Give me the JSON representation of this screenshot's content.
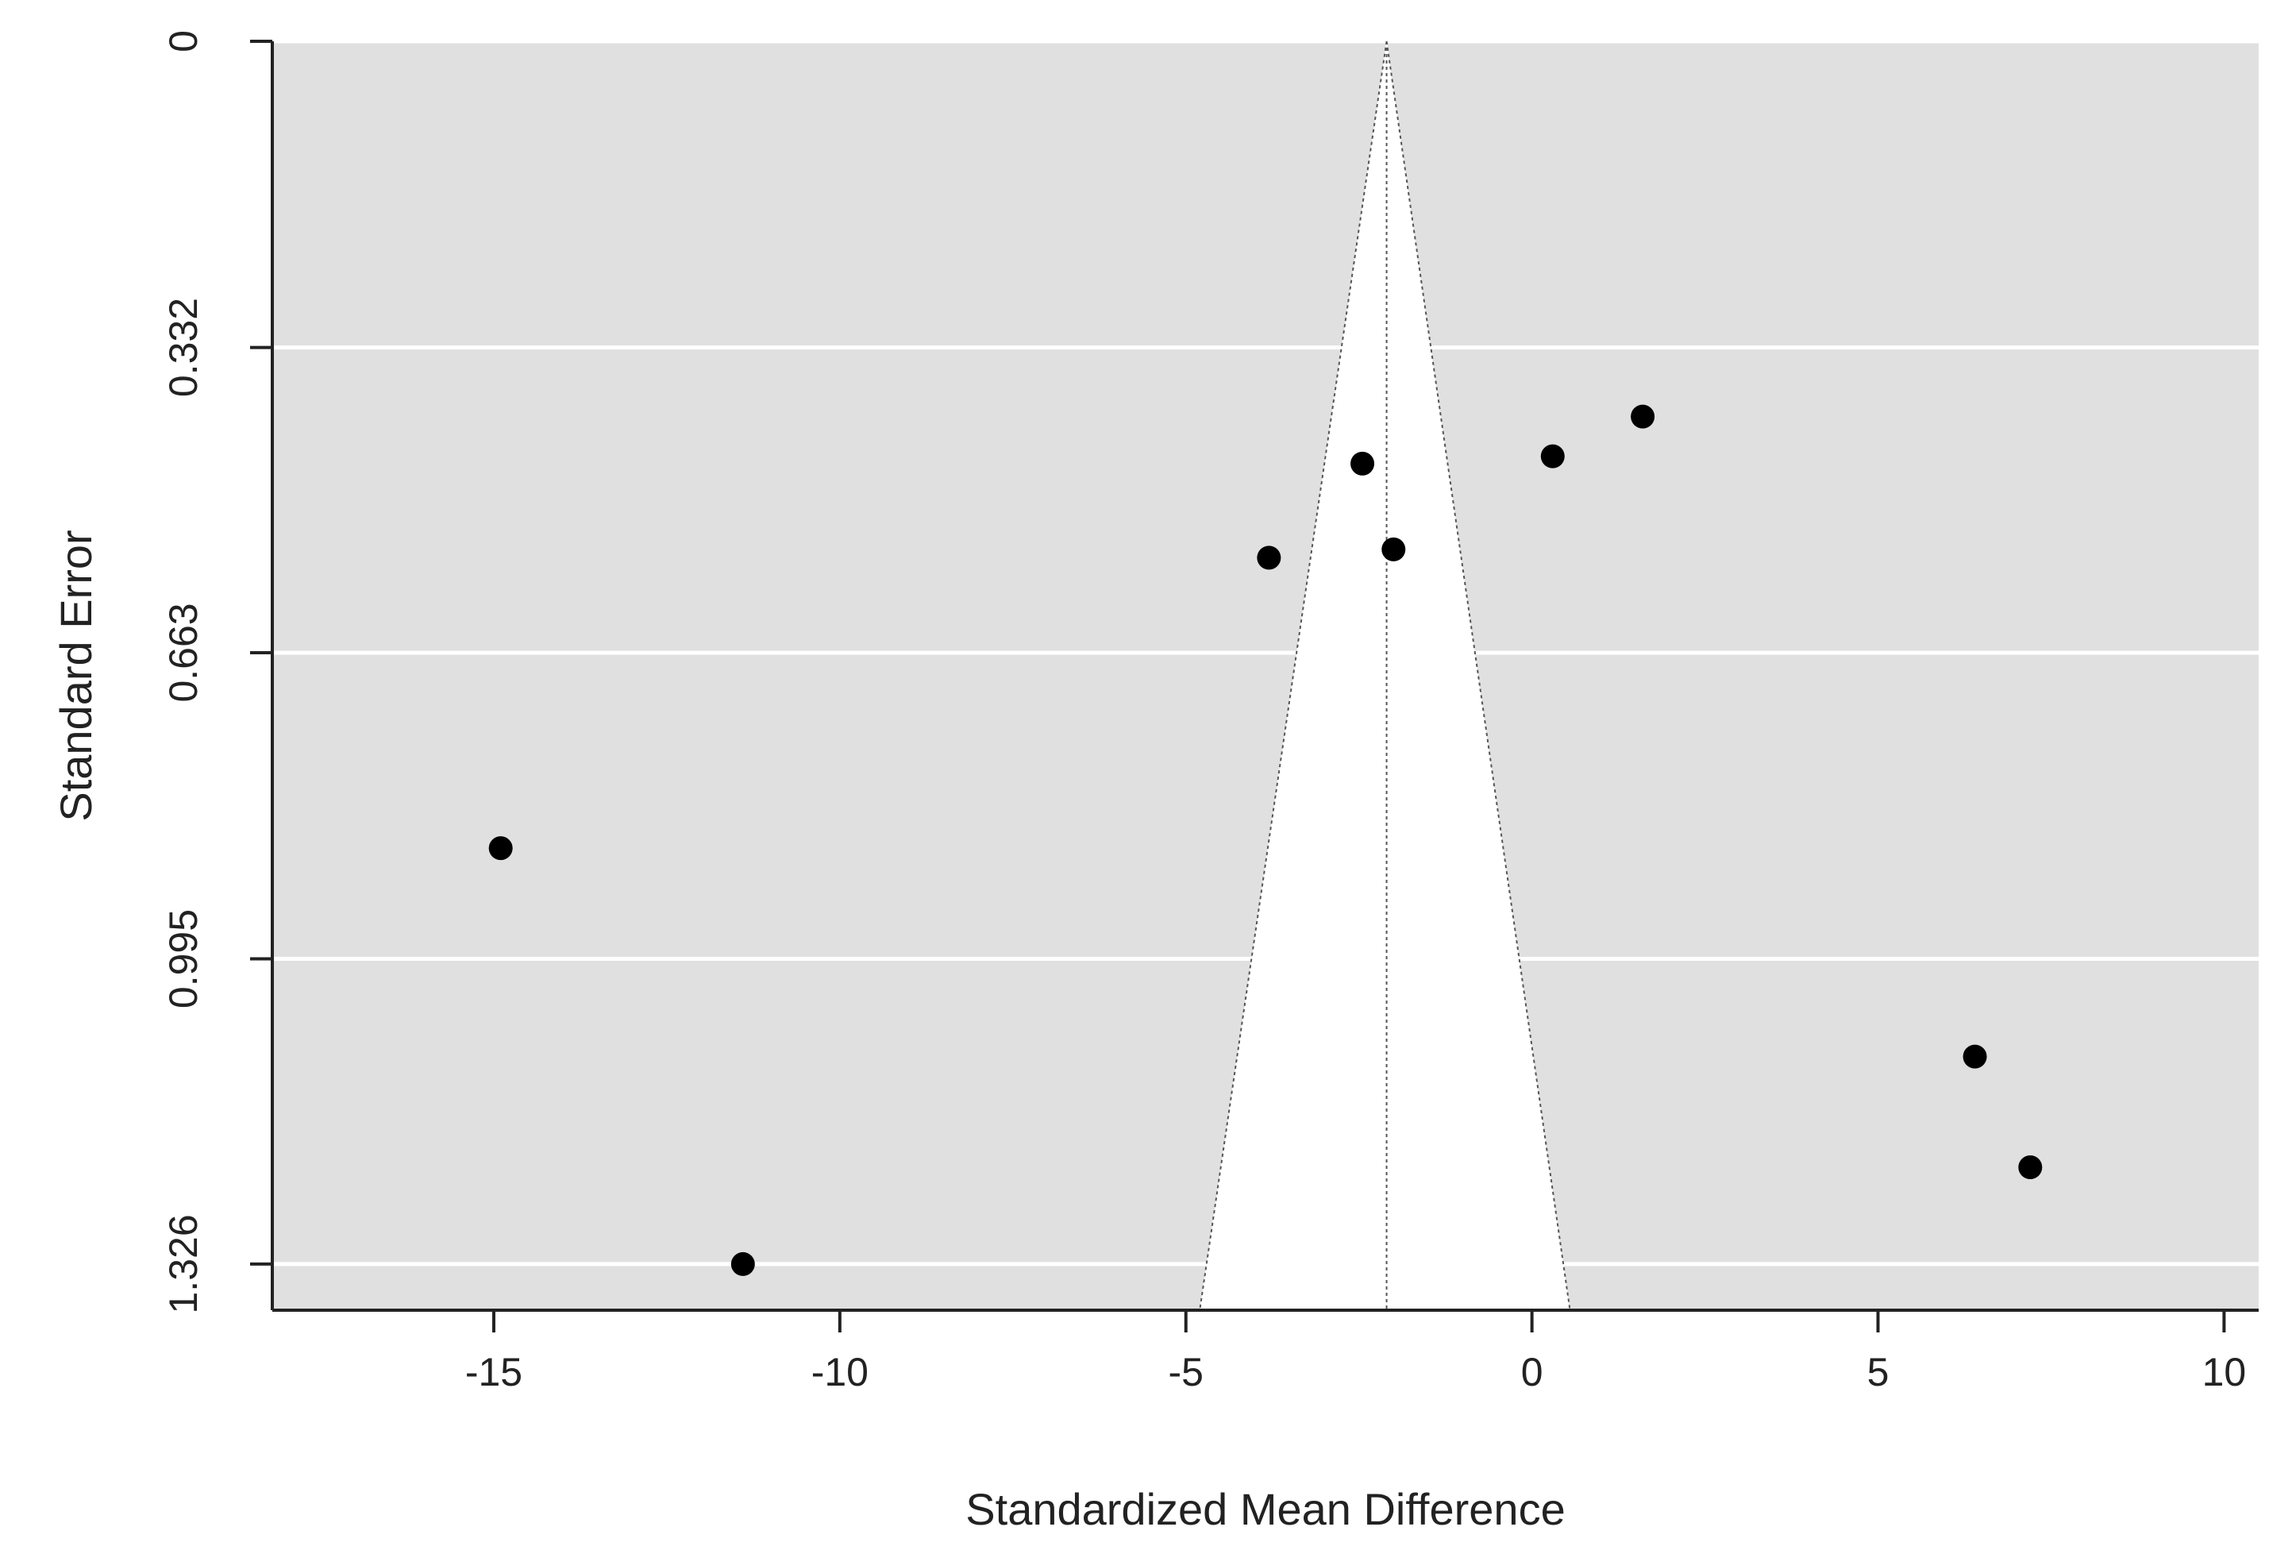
{
  "chart_data": {
    "type": "scatter",
    "subtype": "funnel-plot",
    "title": "",
    "xlabel": "Standardized Mean Difference",
    "ylabel": "Standard Error",
    "xlim": [
      -18.2,
      10.5
    ],
    "ylim": [
      0,
      1.376
    ],
    "y_reversed": true,
    "x_ticks": [
      -15,
      -10,
      -5,
      0,
      5,
      10
    ],
    "x_tick_labels": [
      "-15",
      "-10",
      "-5",
      "0",
      "5",
      "10"
    ],
    "y_ticks": [
      0,
      0.332,
      0.663,
      0.995,
      1.326
    ],
    "y_tick_labels": [
      "0",
      "0.332",
      "0.663",
      "0.995",
      "1.326"
    ],
    "grid": true,
    "pooled_estimate": -2.1,
    "funnel_region": {
      "apex": [
        -2.1,
        0
      ],
      "base_left": [
        -4.8,
        1.376
      ],
      "base_right": [
        0.55,
        1.376
      ]
    },
    "points": [
      {
        "x": -14.9,
        "y": 0.875
      },
      {
        "x": -11.4,
        "y": 1.326
      },
      {
        "x": -3.8,
        "y": 0.56
      },
      {
        "x": -2.45,
        "y": 0.458
      },
      {
        "x": -2.0,
        "y": 0.551
      },
      {
        "x": 0.3,
        "y": 0.45
      },
      {
        "x": 1.6,
        "y": 0.407
      },
      {
        "x": 6.4,
        "y": 1.101
      },
      {
        "x": 7.2,
        "y": 1.221
      }
    ],
    "colors": {
      "panel_background": "#e0e0e0",
      "funnel_fill": "#ffffff",
      "grid_line": "#ffffff",
      "point": "#000000",
      "axis": "#222222"
    }
  }
}
